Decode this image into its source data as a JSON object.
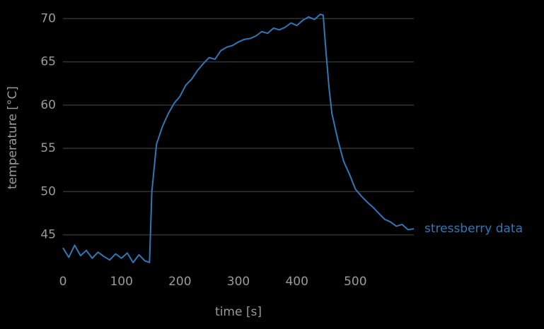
{
  "chart_data": {
    "type": "line",
    "x_label": "time [s]",
    "y_label": "temperature [°C]",
    "x": [
      0,
      10,
      20,
      30,
      40,
      50,
      60,
      70,
      80,
      90,
      100,
      110,
      120,
      130,
      140,
      148,
      152,
      160,
      170,
      180,
      190,
      200,
      210,
      220,
      230,
      240,
      250,
      260,
      270,
      280,
      290,
      300,
      310,
      320,
      330,
      340,
      350,
      360,
      370,
      380,
      390,
      400,
      410,
      420,
      430,
      440,
      445,
      450,
      455,
      460,
      470,
      480,
      490,
      500,
      510,
      520,
      530,
      540,
      550,
      560,
      570,
      580,
      590,
      600
    ],
    "series": [
      {
        "name": "stressberry data",
        "color": "#2f78b8",
        "values": [
          43.5,
          42.4,
          43.8,
          42.6,
          43.2,
          42.3,
          43.0,
          42.5,
          42.1,
          42.8,
          42.3,
          42.9,
          41.8,
          42.7,
          42.0,
          41.8,
          50.0,
          55.5,
          57.5,
          59.0,
          60.2,
          61.0,
          62.3,
          63.0,
          64.0,
          64.8,
          65.5,
          65.3,
          66.3,
          66.7,
          66.9,
          67.3,
          67.6,
          67.7,
          68.0,
          68.5,
          68.3,
          68.9,
          68.7,
          69.0,
          69.5,
          69.2,
          69.8,
          70.2,
          69.9,
          70.5,
          70.4,
          66.0,
          62.0,
          59.0,
          56.0,
          53.5,
          52.0,
          50.3,
          49.5,
          48.8,
          48.2,
          47.5,
          46.8,
          46.5,
          46.0,
          46.2,
          45.6,
          45.7
        ]
      }
    ],
    "xlim": [
      0,
      600
    ],
    "ylim": [
      41.3,
      71.5
    ],
    "xticks": [
      0,
      100,
      200,
      300,
      400,
      500
    ],
    "yticks": [
      45,
      50,
      55,
      60,
      65,
      70
    ],
    "grid": true
  }
}
